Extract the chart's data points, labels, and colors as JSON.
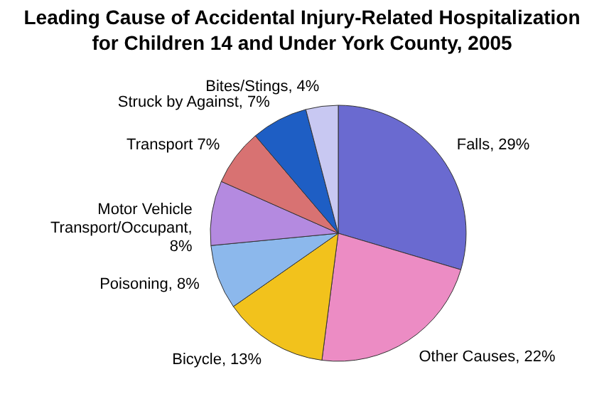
{
  "chart_data": {
    "type": "pie",
    "title": "Leading Cause of Accidental Injury-Related Hospitalization for Children 14 and Under York County, 2005",
    "categories": [
      "Falls",
      "Other Causes",
      "Bicycle",
      "Poisoning",
      "Motor Vehicle Transport/Occupant",
      "Transport",
      "Struck by Against",
      "Bites/Stings"
    ],
    "values": [
      29,
      22,
      13,
      8,
      8,
      7,
      7,
      4
    ],
    "value_labels": [
      ", 29%",
      ", 22%",
      ", 13%",
      ", 8%",
      ",\n8%",
      " 7%",
      ", 7%",
      ", 4%"
    ],
    "colors": [
      "#6a6ad0",
      "#ec8cc4",
      "#f2c21c",
      "#8cb8ec",
      "#b48ae0",
      "#d87272",
      "#1e5ec4",
      "#c8c8f2"
    ]
  }
}
